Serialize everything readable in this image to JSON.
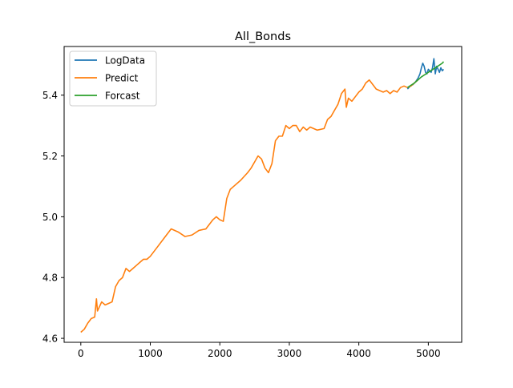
{
  "chart_data": {
    "type": "line",
    "title": "All_Bonds",
    "xlabel": "",
    "ylabel": "",
    "xlim": [
      -240,
      5480
    ],
    "ylim": [
      4.587,
      5.56
    ],
    "x_ticks": [
      0,
      1000,
      2000,
      3000,
      4000,
      5000
    ],
    "y_ticks": [
      4.6,
      4.8,
      5.0,
      5.2,
      5.4
    ],
    "x_tick_labels": [
      "0",
      "1000",
      "2000",
      "3000",
      "4000",
      "5000"
    ],
    "y_tick_labels": [
      "4.6",
      "4.8",
      "5.0",
      "5.2",
      "5.4"
    ],
    "grid": false,
    "legend_position": "upper-left",
    "series": [
      {
        "name": "LogData",
        "color": "#1f77b4",
        "x": [
          4700,
          4740,
          4780,
          4820,
          4850,
          4880,
          4900,
          4920,
          4940,
          4960,
          4980,
          5000,
          5020,
          5040,
          5060,
          5080,
          5100,
          5120,
          5140,
          5160,
          5180,
          5200,
          5220
        ],
        "y": [
          5.42,
          5.43,
          5.435,
          5.445,
          5.455,
          5.47,
          5.49,
          5.505,
          5.495,
          5.475,
          5.47,
          5.485,
          5.48,
          5.475,
          5.49,
          5.52,
          5.47,
          5.495,
          5.485,
          5.475,
          5.49,
          5.48,
          5.485
        ]
      },
      {
        "name": "Predict",
        "color": "#ff7f0e",
        "x": [
          0,
          50,
          100,
          150,
          200,
          225,
          240,
          300,
          350,
          400,
          450,
          480,
          500,
          550,
          600,
          650,
          700,
          750,
          800,
          850,
          900,
          950,
          1000,
          1100,
          1200,
          1300,
          1400,
          1500,
          1600,
          1700,
          1800,
          1900,
          1950,
          2000,
          2050,
          2100,
          2150,
          2200,
          2300,
          2400,
          2450,
          2500,
          2550,
          2600,
          2650,
          2700,
          2750,
          2800,
          2850,
          2900,
          2950,
          3000,
          3050,
          3100,
          3150,
          3200,
          3250,
          3300,
          3400,
          3500,
          3550,
          3600,
          3650,
          3700,
          3750,
          3800,
          3820,
          3850,
          3900,
          3950,
          4000,
          4050,
          4100,
          4150,
          4200,
          4250,
          4300,
          4350,
          4400,
          4450,
          4500,
          4550,
          4600,
          4650,
          4700,
          4750,
          4800,
          4850
        ],
        "y": [
          4.62,
          4.63,
          4.65,
          4.665,
          4.67,
          4.73,
          4.69,
          4.72,
          4.71,
          4.715,
          4.72,
          4.75,
          4.77,
          4.79,
          4.8,
          4.83,
          4.82,
          4.83,
          4.84,
          4.85,
          4.86,
          4.86,
          4.87,
          4.9,
          4.93,
          4.96,
          4.95,
          4.935,
          4.94,
          4.955,
          4.96,
          4.99,
          5.0,
          4.99,
          4.985,
          5.06,
          5.09,
          5.1,
          5.12,
          5.145,
          5.16,
          5.18,
          5.2,
          5.19,
          5.16,
          5.145,
          5.175,
          5.25,
          5.265,
          5.265,
          5.3,
          5.29,
          5.3,
          5.3,
          5.28,
          5.295,
          5.285,
          5.295,
          5.285,
          5.29,
          5.32,
          5.33,
          5.35,
          5.37,
          5.405,
          5.42,
          5.36,
          5.39,
          5.38,
          5.395,
          5.41,
          5.42,
          5.44,
          5.45,
          5.435,
          5.42,
          5.415,
          5.41,
          5.415,
          5.405,
          5.415,
          5.41,
          5.425,
          5.43,
          5.425,
          5.43,
          5.44,
          5.45
        ]
      },
      {
        "name": "Forcast",
        "color": "#2ca02c",
        "x": [
          4700,
          4800,
          4900,
          5000,
          5100,
          5200,
          5220
        ],
        "y": [
          5.425,
          5.44,
          5.46,
          5.475,
          5.49,
          5.505,
          5.51
        ]
      }
    ]
  }
}
